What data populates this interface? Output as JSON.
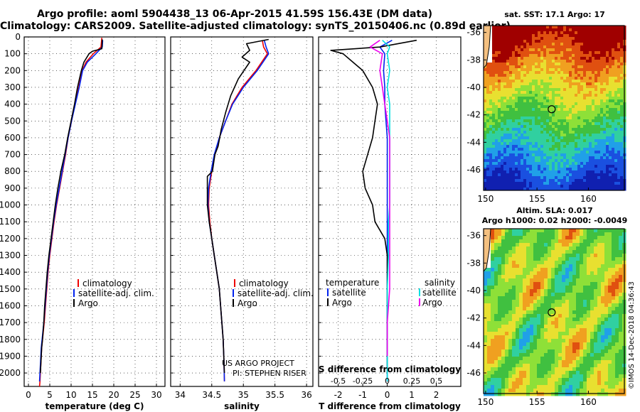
{
  "header": {
    "title_line1": "Argo profile: aoml 5904438_13 06-Apr-2015 41.59S 156.43E (DM data)",
    "title_line2": "Climatology: CARS2009. Satellite-adjusted climatology: synTS_20150406.nc (0.89d earlier)"
  },
  "colors": {
    "climatology": "#ee0000",
    "satellite": "#0022ee",
    "argo": "#000000",
    "sat_salinity": "#00e0e0",
    "argo_salinity": "#ee00ee"
  },
  "chart_data": [
    {
      "type": "line",
      "name": "temperature",
      "xlabel": "temperature (deg C)",
      "ylabel": "",
      "xlim": [
        -1,
        32
      ],
      "ylim": [
        2080,
        0
      ],
      "xticks": [
        0,
        5,
        10,
        15,
        20,
        25,
        30
      ],
      "xtick_labels": [
        "0",
        "5",
        "10",
        "15",
        "20",
        "25",
        "30"
      ],
      "yticks": [
        0,
        100,
        200,
        300,
        400,
        500,
        600,
        700,
        800,
        900,
        1000,
        1100,
        1200,
        1300,
        1400,
        1500,
        1600,
        1700,
        1800,
        1900,
        2000
      ],
      "legend": [
        "climatology",
        "satellite-adj. clim.",
        "Argo"
      ],
      "legend_position": "lower-right",
      "series": [
        {
          "name": "climatology",
          "color": "#ee0000",
          "x": [
            17.2,
            17.0,
            15.2,
            13.5,
            12.6,
            11.8,
            10.9,
            10.1,
            9.3,
            8.7,
            8.0,
            7.3,
            6.6,
            6.0,
            5.5,
            5.0,
            4.6,
            4.3,
            4.0,
            3.7,
            3.5,
            3.3,
            3.1,
            3.0,
            2.9,
            2.8,
            2.7,
            2.6
          ],
          "y": [
            5,
            60,
            100,
            150,
            200,
            300,
            400,
            500,
            600,
            700,
            800,
            900,
            1000,
            1100,
            1200,
            1300,
            1400,
            1500,
            1600,
            1700,
            1750,
            1800,
            1850,
            1900,
            1950,
            2000,
            2050,
            2080
          ]
        },
        {
          "name": "satellite-adj. clim.",
          "color": "#0022ee",
          "x": [
            17.4,
            17.3,
            15.8,
            13.8,
            12.7,
            11.9,
            11.0,
            10.1,
            9.3,
            8.6,
            7.9,
            7.2,
            6.5,
            5.9,
            5.4,
            4.9,
            4.5,
            4.2,
            3.9,
            3.6,
            3.4,
            3.2,
            3.0,
            2.9,
            2.8,
            2.7,
            2.6
          ],
          "y": [
            20,
            60,
            100,
            150,
            200,
            300,
            400,
            500,
            600,
            700,
            800,
            900,
            1000,
            1100,
            1200,
            1300,
            1400,
            1500,
            1600,
            1700,
            1750,
            1800,
            1850,
            1900,
            1950,
            2000,
            2050
          ]
        },
        {
          "name": "Argo",
          "color": "#000000",
          "x": [
            17.3,
            17.2,
            15.0,
            14.2,
            13.0,
            12.4,
            11.5,
            10.8,
            10.0,
            9.2,
            8.5,
            7.6,
            6.9,
            6.3,
            5.8,
            5.3,
            4.8,
            4.4,
            4.1,
            3.8,
            3.6,
            3.3,
            3.1,
            3.0,
            2.9,
            2.8
          ],
          "y": [
            15,
            70,
            85,
            100,
            150,
            200,
            300,
            400,
            500,
            600,
            700,
            800,
            900,
            1000,
            1100,
            1200,
            1300,
            1400,
            1500,
            1600,
            1700,
            1800,
            1850,
            1900,
            1950,
            2000
          ]
        }
      ]
    },
    {
      "type": "line",
      "name": "salinity",
      "xlabel": "salinity",
      "xlim": [
        33.85,
        36.1
      ],
      "ylim": [
        2080,
        0
      ],
      "xticks": [
        34,
        34.5,
        35,
        35.5,
        36
      ],
      "xtick_labels": [
        "34",
        "34.5",
        "35",
        "35.5",
        "36"
      ],
      "legend": [
        "climatology",
        "satellite-adj. clim.",
        "Argo"
      ],
      "legend_position": "lower-right",
      "annotations": [
        "US ARGO PROJECT",
        "PI: STEPHEN RISER"
      ],
      "series": [
        {
          "name": "climatology",
          "color": "#ee0000",
          "x": [
            35.3,
            35.32,
            35.38,
            35.2,
            34.98,
            34.82,
            34.72,
            34.62,
            34.55,
            34.5,
            34.46,
            34.45,
            34.47,
            34.5,
            34.54,
            34.58,
            34.62,
            34.64,
            34.66,
            34.68,
            34.69,
            34.7
          ],
          "y": [
            20,
            60,
            100,
            200,
            300,
            400,
            500,
            600,
            700,
            800,
            900,
            1000,
            1100,
            1200,
            1300,
            1400,
            1500,
            1600,
            1700,
            1800,
            1900,
            2050
          ]
        },
        {
          "name": "satellite-adj. clim.",
          "color": "#0022ee",
          "x": [
            35.33,
            35.36,
            35.4,
            35.22,
            35.0,
            34.83,
            34.72,
            34.62,
            34.54,
            34.49,
            34.45,
            34.44,
            34.46,
            34.5,
            34.54,
            34.58,
            34.62,
            34.64,
            34.66,
            34.68,
            34.69,
            34.7
          ],
          "y": [
            20,
            60,
            100,
            200,
            300,
            400,
            500,
            600,
            700,
            800,
            900,
            1000,
            1100,
            1200,
            1300,
            1400,
            1500,
            1600,
            1700,
            1800,
            1900,
            2050
          ]
        },
        {
          "name": "Argo",
          "color": "#000000",
          "x": [
            35.4,
            35.05,
            35.1,
            34.98,
            35.1,
            34.92,
            34.8,
            34.72,
            34.65,
            34.6,
            34.55,
            34.51,
            34.43,
            34.43,
            34.46,
            34.5,
            34.54,
            34.58,
            34.62,
            34.64,
            34.66,
            34.68,
            34.69,
            34.7
          ],
          "y": [
            15,
            40,
            80,
            120,
            150,
            250,
            350,
            450,
            550,
            650,
            700,
            800,
            830,
            1000,
            1100,
            1200,
            1300,
            1400,
            1500,
            1600,
            1700,
            1800,
            1900,
            2000
          ]
        }
      ]
    },
    {
      "type": "line",
      "name": "difference",
      "xlabel": "T difference from climatology",
      "xlabel_secondary": "S difference from climatology",
      "xlim": [
        -2.8,
        3.0
      ],
      "ylim": [
        2080,
        0
      ],
      "xticks": [
        -2,
        -1,
        0,
        1,
        2
      ],
      "xtick_labels": [
        "-2",
        "-1",
        "0",
        "1",
        "2"
      ],
      "secondary_ticks": [
        -0.5,
        -0.25,
        0,
        0.25,
        0.5
      ],
      "secondary_tick_labels": [
        "-0.5",
        "-0.25",
        "0",
        "0.25",
        "0.5"
      ],
      "secondary_scale": 4,
      "legend": [
        "temperature",
        "satellite",
        "Argo",
        "salinity",
        "satellite",
        "Argo"
      ],
      "legend_position": "lower",
      "series": [
        {
          "name": "temperature satellite",
          "color": "#0022ee",
          "x": [
            0.2,
            -0.3,
            -0.1,
            -0.15,
            -0.1,
            -0.1,
            -0.05,
            0.0,
            0.0,
            0.0,
            0.0,
            0.0,
            0.0,
            0.0,
            0.0,
            0.0,
            0.0,
            0.0,
            0.0,
            0.0
          ],
          "y": [
            20,
            60,
            100,
            200,
            300,
            400,
            500,
            600,
            700,
            800,
            900,
            1000,
            1100,
            1200,
            1300,
            1400,
            1500,
            1600,
            1800,
            2050
          ]
        },
        {
          "name": "temperature Argo",
          "color": "#000000",
          "x": [
            1.2,
            -0.3,
            -2.3,
            -1.8,
            -1.4,
            -1.0,
            -0.6,
            -0.4,
            -0.5,
            -0.6,
            -1.0,
            -0.9,
            -0.6,
            -0.5,
            -0.1,
            0.0,
            0.0,
            0.0,
            0.0,
            0.0,
            0.0,
            0.0
          ],
          "y": [
            20,
            60,
            80,
            100,
            150,
            200,
            300,
            400,
            500,
            600,
            800,
            900,
            1000,
            1100,
            1200,
            1300,
            1400,
            1500,
            1600,
            1700,
            1800,
            2000
          ]
        },
        {
          "name": "salinity satellite",
          "color": "#00e0e0",
          "x": [
            -0.2,
            0.1,
            0.0,
            0.1,
            0.0,
            0.1,
            0.1,
            0.1,
            0.1,
            0.1,
            0.1,
            0.1,
            0.05,
            0.05,
            0.0,
            0.0,
            0.0
          ],
          "y": [
            20,
            60,
            100,
            200,
            300,
            400,
            500,
            600,
            700,
            800,
            900,
            1000,
            1100,
            1300,
            1500,
            1800,
            2050
          ]
        },
        {
          "name": "salinity Argo",
          "color": "#ee00ee",
          "x": [
            -0.3,
            -0.7,
            -0.2,
            -0.3,
            -0.2,
            -0.1,
            0.0,
            0.1,
            0.1,
            0.1,
            0.1,
            0.1,
            0.1,
            0.1,
            0.1,
            0.0,
            0.0
          ],
          "y": [
            20,
            60,
            100,
            200,
            300,
            400,
            500,
            600,
            700,
            800,
            900,
            1000,
            1100,
            1300,
            1500,
            1700,
            1900
          ]
        }
      ]
    }
  ],
  "maps": {
    "sst": {
      "title": "sat. SST: 17.1 Argo: 17",
      "yticks": [
        "-36",
        "-38",
        "-40",
        "-42",
        "-44",
        "-46"
      ],
      "xticks": [
        "150",
        "155",
        "160"
      ],
      "argo_lon": 156.43,
      "argo_lat": -41.59
    },
    "sla": {
      "title_line1": "Altim. SLA: 0.017",
      "title_line2": "Argo h1000: 0.02 h2000: -0.0049",
      "yticks": [
        "-36",
        "-38",
        "-40",
        "-42",
        "-44",
        "-46"
      ],
      "xticks": [
        "150",
        "155",
        "160"
      ],
      "argo_lon": 156.43,
      "argo_lat": -41.59
    },
    "credit": "©IMOS 14-Dec-2018 04:36:43"
  },
  "legend_labels": {
    "climatology": "climatology",
    "satellite_adj": "satellite-adj. clim.",
    "argo": "Argo",
    "temperature": "temperature",
    "salinity": "salinity",
    "satellite": "satellite"
  },
  "depth_ticks": [
    "0",
    "100",
    "200",
    "300",
    "400",
    "500",
    "600",
    "700",
    "800",
    "900",
    "1000",
    "1100",
    "1200",
    "1300",
    "1400",
    "1500",
    "1600",
    "1700",
    "1800",
    "1900",
    "2000"
  ]
}
